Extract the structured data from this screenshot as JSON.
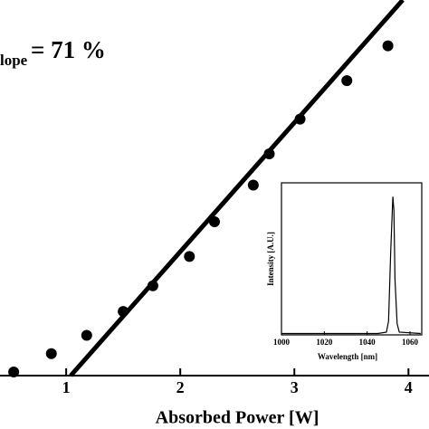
{
  "chart_data": [
    {
      "type": "scatter",
      "xlabel": "Absorbed Power [W]",
      "annotation": {
        "sub": "lope",
        "text": "= 71 %"
      },
      "x": [
        0.54,
        0.87,
        1.18,
        1.5,
        1.76,
        2.08,
        2.3,
        2.64,
        2.78,
        3.05,
        3.46,
        3.82
      ],
      "values": [
        0.02,
        0.12,
        0.22,
        0.35,
        0.49,
        0.65,
        0.84,
        1.04,
        1.21,
        1.4,
        1.61,
        1.8
      ],
      "color": "#000000",
      "fit": {
        "x": [
          1.04,
          3.95
        ],
        "values": [
          0,
          2.05
        ],
        "color": "#000000"
      },
      "xlim": [
        0.42,
        4.18
      ],
      "ylim": [
        0,
        2.05
      ],
      "xticks": [
        1,
        2,
        3,
        4
      ]
    },
    {
      "type": "line",
      "xlabel": "Wavelength [nm]",
      "ylabel": "Intensity [A.U.]",
      "x": [
        1000,
        1045,
        1049,
        1050,
        1051,
        1052,
        1052.5,
        1053,
        1054,
        1055,
        1065
      ],
      "values": [
        0.01,
        0.01,
        0.02,
        0.1,
        0.6,
        1.0,
        0.9,
        0.4,
        0.08,
        0.02,
        0.01
      ],
      "color": "#000000",
      "xlim": [
        1000,
        1065.5
      ],
      "ylim": [
        0,
        1.1
      ],
      "xticks": [
        1000,
        1020,
        1040,
        1060
      ]
    }
  ]
}
